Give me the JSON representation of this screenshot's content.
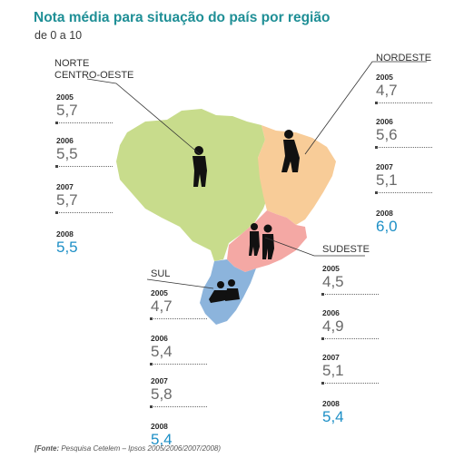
{
  "title": "Nota média para situação do país por região",
  "subtitle": "de 0 a 10",
  "source_label": "[Fonte:",
  "source_text": "Pesquisa Cetelem – Ipsos 2005/2006/2007/2008)",
  "colors": {
    "title": "#1f8f96",
    "highlight": "#1d8fc6",
    "norte_centro_oeste": "#c8dc8c",
    "nordeste": "#f8cc98",
    "sudeste": "#f4a8a4",
    "sul": "#8cb4dc"
  },
  "chart_data": {
    "type": "table",
    "title": "Nota média para situação do país por região",
    "subtitle": "de 0 a 10",
    "years": [
      "2005",
      "2006",
      "2007",
      "2008"
    ],
    "series": [
      {
        "name": "NORTE CENTRO-OESTE",
        "name_lines": [
          "NORTE",
          "CENTRO-OESTE"
        ],
        "values": [
          "5,7",
          "5,5",
          "5,7",
          "5,5"
        ]
      },
      {
        "name": "NORDESTE",
        "name_lines": [
          "NORDESTE"
        ],
        "values": [
          "4,7",
          "5,6",
          "5,1",
          "6,0"
        ]
      },
      {
        "name": "SUDESTE",
        "name_lines": [
          "SUDESTE"
        ],
        "values": [
          "4,5",
          "4,9",
          "5,1",
          "5,4"
        ]
      },
      {
        "name": "SUL",
        "name_lines": [
          "SUL"
        ],
        "values": [
          "4,7",
          "5,4",
          "5,8",
          "5,4"
        ]
      }
    ],
    "highlight_year": "2008"
  }
}
